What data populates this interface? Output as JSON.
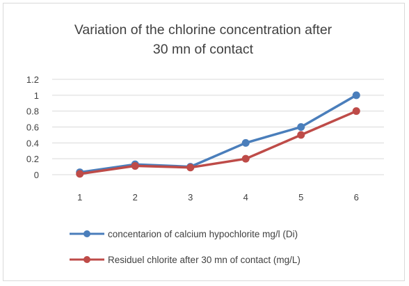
{
  "chart_data": {
    "type": "line",
    "title": "Variation of the chlorine concentration after 30 mn of contact",
    "title_lines": [
      "Variation of the chlorine concentration after",
      "30 mn of contact"
    ],
    "x": [
      "1",
      "2",
      "3",
      "4",
      "5",
      "6"
    ],
    "ylim": [
      0,
      1.2
    ],
    "yticks": [
      "0",
      "0.2",
      "0.4",
      "0.6",
      "0.8",
      "1",
      "1.2"
    ],
    "grid": true,
    "legend_position": "bottom",
    "series": [
      {
        "name": "concentarion of calcium hypochlorite mg/l (Di)",
        "values": [
          0.03,
          0.13,
          0.1,
          0.4,
          0.6,
          1.0
        ],
        "color": "#4a7ebb"
      },
      {
        "name": "Residuel chlorite after 30 mn of contact (mg/L)",
        "values": [
          0.01,
          0.11,
          0.09,
          0.2,
          0.5,
          0.8
        ],
        "color": "#be4b48"
      }
    ]
  }
}
